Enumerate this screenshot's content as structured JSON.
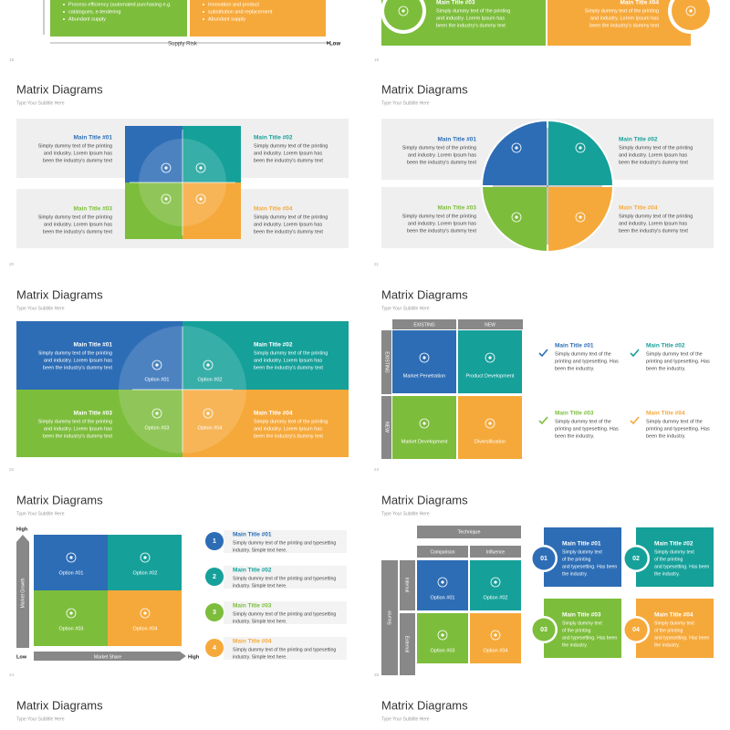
{
  "slides": [
    {
      "page": "18",
      "bullets_left": [
        "Process efficiency (automated purchasing e.g.",
        "catalogues, e-tendering",
        "Abundant supply"
      ],
      "bullets_right": [
        "Innovation and product",
        "substitution and replacement",
        "Abundant supply"
      ],
      "axis_label": "Supply Risk",
      "axis_end": "Low"
    },
    {
      "page": "19",
      "items": [
        {
          "title": "Main Title #03",
          "lines": [
            "Simply dummy text of the printing",
            "and industry. Lorem Ipsum has",
            "been the industry's dummy text"
          ]
        },
        {
          "title": "Main Title #04",
          "lines": [
            "Simply dummy text of the printing",
            "and industry. Lorem Ipsum has",
            "been the industry's dummy text"
          ]
        }
      ]
    },
    {
      "title": "Matrix Diagrams",
      "subtitle": "Type Your Subtitle Here",
      "page": "20",
      "items": [
        {
          "title": "Main Title #01",
          "lines": [
            "Simply dummy text of the printing",
            "and industry. Lorem Ipsum has",
            "been the industry's dummy text"
          ]
        },
        {
          "title": "Main Title #02",
          "lines": [
            "Simply dummy text of the printing",
            "and industry. Lorem Ipsum has",
            "been the industry's dummy text"
          ]
        },
        {
          "title": "Main Title #03",
          "lines": [
            "Simply dummy text of the printing",
            "and industry. Lorem Ipsum has",
            "been the industry's dummy text"
          ]
        },
        {
          "title": "Main Title #04",
          "lines": [
            "Simply dummy text of the printing",
            "and industry. Lorem Ipsum has",
            "been the industry's dummy text"
          ]
        }
      ]
    },
    {
      "title": "Matrix Diagrams",
      "subtitle": "Type Your Subtitle Here",
      "page": "21",
      "items": [
        {
          "title": "Main Title #01",
          "lines": [
            "Simply dummy text of the printing",
            "and industry. Lorem Ipsum has",
            "been the industry's dummy text"
          ]
        },
        {
          "title": "Main Title #02",
          "lines": [
            "Simply dummy text of the printing",
            "and industry. Lorem Ipsum has",
            "been the industry's dummy text"
          ]
        },
        {
          "title": "Main Title #03",
          "lines": [
            "Simply dummy text of the printing",
            "and industry. Lorem Ipsum has",
            "been the industry's dummy text"
          ]
        },
        {
          "title": "Main Title #04",
          "lines": [
            "Simply dummy text of the printing",
            "and industry. Lorem Ipsum has",
            "been the industry's dummy text"
          ]
        }
      ]
    },
    {
      "title": "Matrix Diagrams",
      "subtitle": "Type Your Subtitle Here",
      "page": "22",
      "items": [
        {
          "title": "Main Title #01",
          "lines": [
            "Simply dummy text of the printing",
            "and industry. Lorem Ipsum has",
            "been the industry's dummy text"
          ]
        },
        {
          "title": "Main Title #02",
          "lines": [
            "Simply dummy text of the printing",
            "and industry. Lorem Ipsum has",
            "been the industry's dummy text"
          ]
        },
        {
          "title": "Main Title #03",
          "lines": [
            "Simply dummy text of the printing",
            "and industry. Lorem Ipsum has",
            "been the industry's dummy text"
          ]
        },
        {
          "title": "Main Title #04",
          "lines": [
            "Simply dummy text of the printing",
            "and industry. Lorem Ipsum has",
            "been the industry's dummy text"
          ]
        }
      ],
      "options": [
        "Option #01",
        "Option #02",
        "Option #03",
        "Option #04"
      ]
    },
    {
      "title": "Matrix Diagrams",
      "subtitle": "Type Your Subtitle Here",
      "page": "23",
      "col_headers": [
        "EXISTING",
        "NEW"
      ],
      "row_headers": [
        "EXISTING",
        "NEW"
      ],
      "cells": [
        "Market Penetration",
        "Product Development",
        "Market Development",
        "Diversification"
      ],
      "items": [
        {
          "title": "Main Title #01",
          "lines": [
            "Simply dummy text of the",
            "printing and typesetting. Has",
            "been the industry."
          ]
        },
        {
          "title": "Main Title #02",
          "lines": [
            "Simply dummy text of the",
            "printing and typesetting. Has",
            "been the industry."
          ]
        },
        {
          "title": "Main Title #03",
          "lines": [
            "Simply dummy text of the",
            "printing and typesetting. Has",
            "been the industry."
          ]
        },
        {
          "title": "Main Title #04",
          "lines": [
            "Simply dummy text of the",
            "printing and typesetting. Has",
            "been the industry."
          ]
        }
      ]
    },
    {
      "title": "Matrix Diagrams",
      "subtitle": "Type Your Subtitle Here",
      "page": "24",
      "y_high": "High",
      "x_low": "Low",
      "x_high": "High",
      "y_axis": "Market Growth",
      "x_axis": "Market Share",
      "options": [
        "Option #01",
        "Option #02",
        "Option #03",
        "Option #04"
      ],
      "numbers": [
        "1",
        "2",
        "3",
        "4"
      ],
      "items": [
        {
          "title": "Main Title #01",
          "lines": [
            "Simply dummy text of the printing and typesetting",
            "industry. Simple text here."
          ]
        },
        {
          "title": "Main Title #02",
          "lines": [
            "Simply dummy text of the printing and typesetting",
            "industry. Simple text here."
          ]
        },
        {
          "title": "Main Title #03",
          "lines": [
            "Simply dummy text of the printing and typesetting",
            "industry. Simple text here."
          ]
        },
        {
          "title": "Main Title #04",
          "lines": [
            "Simply dummy text of the printing and typesetting",
            "industry. Simple text here."
          ]
        }
      ]
    },
    {
      "title": "Matrix Diagrams",
      "subtitle": "Type Your Subtitle Here",
      "page": "25",
      "technique": "Technique",
      "col_headers": [
        "Comparison",
        "Influence"
      ],
      "source": "Source",
      "row_headers": [
        "Internal",
        "External"
      ],
      "options": [
        "Option #01",
        "Option #02",
        "Option #03",
        "Option #04"
      ],
      "numbers": [
        "01",
        "02",
        "03",
        "04"
      ],
      "items": [
        {
          "title": "Main Title #01",
          "lines": [
            "Simply dummy text",
            "of the printing",
            "and typesetting. Has been",
            "the industry."
          ]
        },
        {
          "title": "Main Title #02",
          "lines": [
            "Simply dummy text",
            "of the printing",
            "and typesetting. Has been",
            "the industry."
          ]
        },
        {
          "title": "Main Title #03",
          "lines": [
            "Simply dummy text",
            "of the printing",
            "and typesetting. Has been",
            "the industry."
          ]
        },
        {
          "title": "Main Title #04",
          "lines": [
            "Simply dummy text",
            "of the printing",
            "and typesetting. Has been",
            "the industry."
          ]
        }
      ]
    },
    {
      "title": "Matrix Diagrams",
      "subtitle": "Type Your Subtitle Here"
    },
    {
      "title": "Matrix Diagrams",
      "subtitle": "Type Your Subtitle Here"
    }
  ]
}
